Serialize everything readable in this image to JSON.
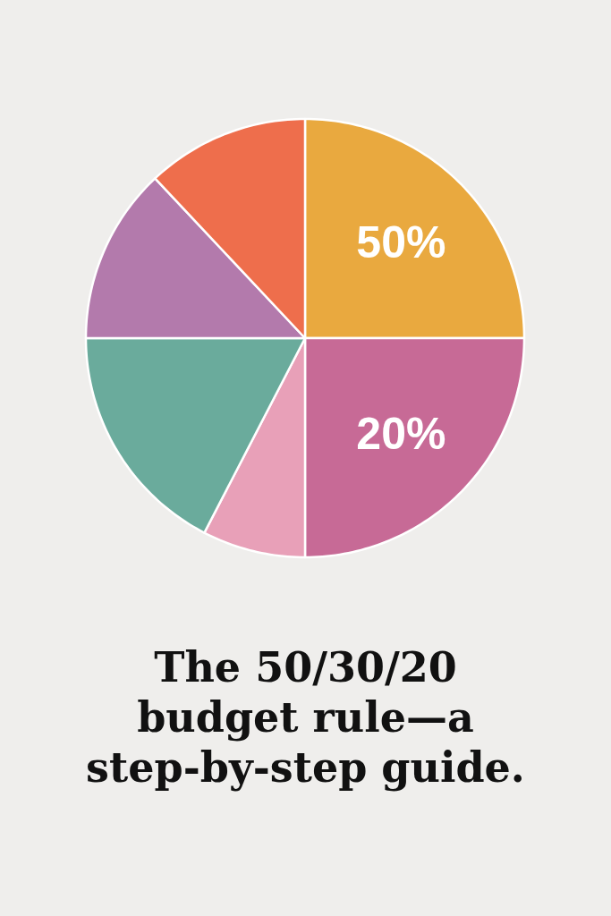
{
  "chart_data": {
    "type": "pie",
    "title": "The 50/30/20 budget rule—a step-by-step guide.",
    "categories": [
      null,
      null,
      null,
      null,
      null,
      null
    ],
    "values": [
      25,
      25,
      7.6,
      17.4,
      13,
      12
    ],
    "colors": [
      "#e9a93f",
      "#c76a96",
      "#e8a0b8",
      "#6aab9c",
      "#b37aac",
      "#ee6e4c"
    ],
    "annotations": [
      "50%",
      "20%"
    ]
  }
}
